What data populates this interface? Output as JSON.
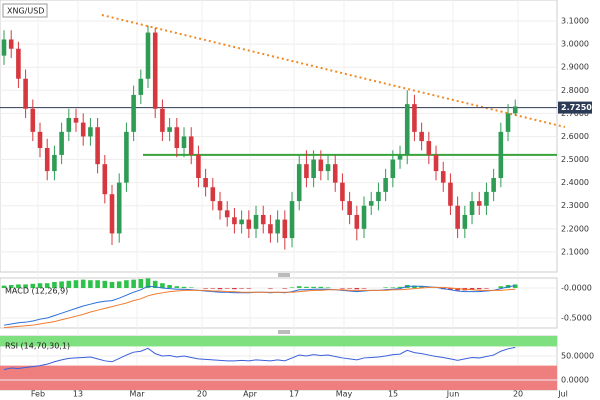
{
  "chart_data": [
    {
      "type": "candlestick",
      "title": "XNG/USD",
      "x": [
        0,
        1,
        2,
        3,
        4,
        5,
        6,
        7,
        8,
        9,
        10,
        11,
        12,
        13,
        14,
        15,
        16,
        17,
        18,
        19,
        20,
        21,
        22,
        23,
        24,
        25,
        26,
        27,
        28,
        29,
        30,
        31,
        32,
        33,
        34,
        35,
        36,
        37,
        38,
        39,
        40,
        41,
        42,
        43,
        44,
        45,
        46,
        47,
        48,
        49,
        50,
        51,
        52,
        53,
        54,
        55,
        56,
        57,
        58,
        59,
        60,
        61,
        62,
        63,
        64,
        65,
        66,
        67,
        68,
        69,
        70,
        71
      ],
      "open": [
        2.95,
        3.02,
        2.98,
        2.85,
        2.72,
        2.62,
        2.55,
        2.45,
        2.52,
        2.62,
        2.68,
        2.66,
        2.6,
        2.64,
        2.48,
        2.35,
        2.18,
        2.4,
        2.62,
        2.78,
        2.85,
        3.05,
        2.72,
        2.62,
        2.64,
        2.55,
        2.6,
        2.52,
        2.42,
        2.38,
        2.32,
        2.28,
        2.25,
        2.22,
        2.24,
        2.2,
        2.26,
        2.22,
        2.18,
        2.24,
        2.16,
        2.32,
        2.48,
        2.42,
        2.5,
        2.45,
        2.48,
        2.4,
        2.32,
        2.26,
        2.2,
        2.3,
        2.32,
        2.36,
        2.42,
        2.5,
        2.52,
        2.74,
        2.62,
        2.58,
        2.52,
        2.45,
        2.4,
        2.3,
        2.2,
        2.26,
        2.32,
        2.3,
        2.36,
        2.42,
        2.62,
        2.7
      ],
      "high": [
        3.06,
        3.06,
        3.01,
        2.89,
        2.76,
        2.66,
        2.59,
        2.56,
        2.66,
        2.72,
        2.72,
        2.7,
        2.68,
        2.68,
        2.52,
        2.39,
        2.44,
        2.66,
        2.82,
        2.89,
        3.08,
        3.07,
        2.76,
        2.68,
        2.68,
        2.64,
        2.64,
        2.56,
        2.46,
        2.42,
        2.36,
        2.32,
        2.29,
        2.28,
        2.28,
        2.3,
        2.3,
        2.26,
        2.28,
        2.28,
        2.36,
        2.52,
        2.54,
        2.54,
        2.54,
        2.52,
        2.52,
        2.44,
        2.36,
        2.3,
        2.34,
        2.36,
        2.4,
        2.46,
        2.54,
        2.56,
        2.8,
        2.78,
        2.66,
        2.62,
        2.56,
        2.49,
        2.44,
        2.34,
        2.3,
        2.36,
        2.36,
        2.4,
        2.46,
        2.66,
        2.74,
        2.76
      ],
      "low": [
        2.91,
        2.94,
        2.81,
        2.68,
        2.58,
        2.51,
        2.41,
        2.41,
        2.48,
        2.58,
        2.62,
        2.56,
        2.56,
        2.44,
        2.31,
        2.13,
        2.14,
        2.36,
        2.58,
        2.74,
        2.81,
        2.68,
        2.58,
        2.58,
        2.51,
        2.51,
        2.48,
        2.38,
        2.34,
        2.28,
        2.24,
        2.21,
        2.18,
        2.18,
        2.16,
        2.16,
        2.18,
        2.14,
        2.14,
        2.11,
        2.12,
        2.28,
        2.38,
        2.38,
        2.41,
        2.41,
        2.36,
        2.28,
        2.22,
        2.15,
        2.16,
        2.26,
        2.28,
        2.32,
        2.38,
        2.46,
        2.48,
        2.58,
        2.54,
        2.48,
        2.41,
        2.36,
        2.26,
        2.16,
        2.16,
        2.22,
        2.26,
        2.26,
        2.32,
        2.38,
        2.58,
        2.69
      ],
      "close": [
        3.02,
        2.98,
        2.85,
        2.72,
        2.62,
        2.55,
        2.45,
        2.52,
        2.62,
        2.68,
        2.66,
        2.6,
        2.64,
        2.48,
        2.35,
        2.18,
        2.4,
        2.62,
        2.78,
        2.85,
        3.05,
        2.72,
        2.62,
        2.64,
        2.55,
        2.6,
        2.52,
        2.42,
        2.38,
        2.32,
        2.28,
        2.25,
        2.22,
        2.24,
        2.2,
        2.26,
        2.22,
        2.18,
        2.24,
        2.16,
        2.32,
        2.48,
        2.42,
        2.5,
        2.45,
        2.48,
        2.4,
        2.32,
        2.26,
        2.2,
        2.3,
        2.32,
        2.36,
        2.42,
        2.5,
        2.52,
        2.74,
        2.62,
        2.58,
        2.52,
        2.45,
        2.4,
        2.3,
        2.2,
        2.26,
        2.32,
        2.3,
        2.36,
        2.42,
        2.62,
        2.7,
        2.73
      ],
      "xlim": [
        -0.556,
        76.8
      ],
      "ylim": [
        2.013,
        3.191
      ],
      "yticks": [
        {
          "value": 2.1,
          "label": "2.1000"
        },
        {
          "value": 2.2,
          "label": "2.2000"
        },
        {
          "value": 2.3,
          "label": "2.3000"
        },
        {
          "value": 2.4,
          "label": "2.4000"
        },
        {
          "value": 2.5,
          "label": "2.5000"
        },
        {
          "value": 2.6,
          "label": "2.6000"
        },
        {
          "value": 2.7,
          "label": "2.7000"
        },
        {
          "value": 2.8,
          "label": "2.8000"
        },
        {
          "value": 2.9,
          "label": "2.9000"
        },
        {
          "value": 3.0,
          "label": "3.0000"
        },
        {
          "value": 3.1,
          "label": "3.1000"
        }
      ],
      "xticks": [
        {
          "value": 4.72,
          "label": "Feb"
        },
        {
          "value": 10.28,
          "label": "13"
        },
        {
          "value": 18.47,
          "label": "Mar"
        },
        {
          "value": 27.5,
          "label": "20"
        },
        {
          "value": 34.17,
          "label": "Apr"
        },
        {
          "value": 40.28,
          "label": "17"
        },
        {
          "value": 47.22,
          "label": "May"
        },
        {
          "value": 54.03,
          "label": "15"
        },
        {
          "value": 62.36,
          "label": "Jun"
        },
        {
          "value": 71.39,
          "label": "20"
        },
        {
          "value": 77.64,
          "label": "Jul"
        }
      ],
      "up_color": "#2f9c55",
      "down_color": "#d6383f",
      "grid": true,
      "last_price": {
        "value": 2.725,
        "label": "2.7250"
      },
      "trendlines": [
        {
          "x": [
            13.6,
            77.9
          ],
          "y": [
            3.126,
            2.641
          ],
          "color": "#f08a24",
          "style": "dotted"
        },
        {
          "x": [
            19.3,
            76.8
          ],
          "y": [
            2.52,
            2.52
          ],
          "color": "#3aa23a",
          "style": "solid"
        }
      ]
    },
    {
      "type": "macd",
      "title": "MACD (12,26,9)",
      "ylim": [
        -0.667,
        0.167
      ],
      "yticks": [
        {
          "value": 0,
          "label": "-0.0000"
        },
        {
          "value": -0.5,
          "label": "-0.5000"
        }
      ],
      "macd": [
        -0.62,
        -0.6,
        -0.58,
        -0.57,
        -0.55,
        -0.52,
        -0.5,
        -0.46,
        -0.42,
        -0.38,
        -0.34,
        -0.3,
        -0.27,
        -0.24,
        -0.22,
        -0.21,
        -0.17,
        -0.12,
        -0.07,
        -0.03,
        0.03,
        0.02,
        0.0,
        -0.01,
        -0.02,
        -0.02,
        -0.03,
        -0.04,
        -0.05,
        -0.06,
        -0.07,
        -0.07,
        -0.08,
        -0.08,
        -0.08,
        -0.07,
        -0.07,
        -0.08,
        -0.07,
        -0.08,
        -0.06,
        -0.03,
        -0.03,
        -0.02,
        -0.02,
        -0.02,
        -0.03,
        -0.04,
        -0.05,
        -0.06,
        -0.05,
        -0.04,
        -0.04,
        -0.03,
        -0.02,
        -0.01,
        0.03,
        0.03,
        0.03,
        0.02,
        0.01,
        -0.01,
        -0.03,
        -0.05,
        -0.06,
        -0.06,
        -0.06,
        -0.05,
        -0.04,
        -0.01,
        0.02,
        0.04
      ],
      "signal": [
        -0.66,
        -0.65,
        -0.64,
        -0.63,
        -0.62,
        -0.6,
        -0.58,
        -0.56,
        -0.53,
        -0.5,
        -0.47,
        -0.44,
        -0.4,
        -0.37,
        -0.34,
        -0.31,
        -0.28,
        -0.25,
        -0.21,
        -0.18,
        -0.13,
        -0.1,
        -0.08,
        -0.06,
        -0.05,
        -0.04,
        -0.04,
        -0.04,
        -0.04,
        -0.05,
        -0.05,
        -0.06,
        -0.06,
        -0.07,
        -0.07,
        -0.07,
        -0.07,
        -0.07,
        -0.07,
        -0.07,
        -0.07,
        -0.06,
        -0.05,
        -0.04,
        -0.04,
        -0.03,
        -0.03,
        -0.03,
        -0.04,
        -0.04,
        -0.04,
        -0.04,
        -0.04,
        -0.04,
        -0.03,
        -0.03,
        -0.02,
        -0.01,
        0.0,
        0.01,
        0.01,
        0.01,
        0.0,
        -0.01,
        -0.02,
        -0.03,
        -0.04,
        -0.04,
        -0.04,
        -0.04,
        -0.03,
        -0.02
      ],
      "histogram": [
        0.04,
        0.05,
        0.06,
        0.06,
        0.07,
        0.08,
        0.08,
        0.1,
        0.11,
        0.12,
        0.13,
        0.14,
        0.13,
        0.13,
        0.12,
        0.1,
        0.11,
        0.13,
        0.14,
        0.15,
        0.16,
        0.12,
        0.08,
        0.05,
        0.03,
        0.02,
        0.01,
        0.0,
        -0.01,
        -0.01,
        -0.02,
        -0.01,
        -0.02,
        -0.01,
        -0.01,
        0.0,
        0.0,
        -0.01,
        0.0,
        -0.01,
        0.01,
        0.03,
        0.02,
        0.02,
        0.02,
        0.01,
        0.0,
        -0.01,
        -0.01,
        -0.02,
        -0.01,
        0.0,
        0.0,
        0.01,
        0.01,
        0.02,
        0.05,
        0.04,
        0.03,
        0.01,
        0.0,
        -0.02,
        -0.03,
        -0.04,
        -0.04,
        -0.03,
        -0.02,
        -0.01,
        0.0,
        0.03,
        0.05,
        0.06
      ],
      "macd_color": "#2a6fdb",
      "signal_color": "#f07c30",
      "hist_up_color": "#2fc24a",
      "hist_down_color": "#d6383f"
    },
    {
      "type": "rsi",
      "title": "RSI (14,70,30,1)",
      "ylim": [
        -20.8,
        91.7
      ],
      "yticks": [
        {
          "value": 50,
          "label": "50.0000"
        },
        {
          "value": 0,
          "label": "0.0000"
        }
      ],
      "overbought": 70,
      "oversold": 30,
      "overbought_color": "#7ee07e",
      "oversold_color": "#ef7f7f",
      "color": "#3a5fd9",
      "values": [
        22,
        25,
        24,
        26,
        28,
        30,
        33,
        38,
        42,
        45,
        46,
        47,
        48,
        44,
        40,
        38,
        45,
        52,
        58,
        60,
        66,
        55,
        50,
        51,
        48,
        50,
        47,
        44,
        43,
        42,
        41,
        40,
        40,
        41,
        40,
        42,
        41,
        40,
        42,
        40,
        46,
        52,
        50,
        53,
        51,
        52,
        49,
        46,
        44,
        42,
        46,
        47,
        48,
        50,
        53,
        54,
        62,
        57,
        55,
        52,
        49,
        47,
        44,
        41,
        44,
        47,
        46,
        49,
        52,
        60,
        65,
        68
      ]
    }
  ]
}
